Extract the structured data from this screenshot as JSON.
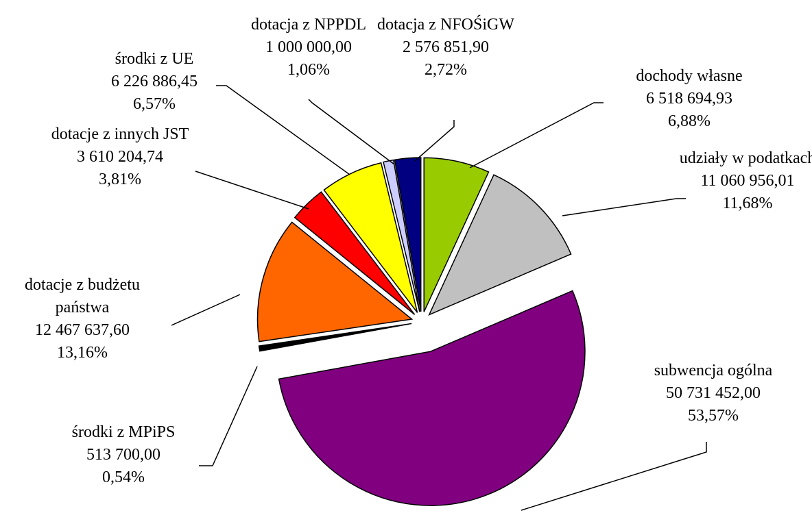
{
  "chart_data": {
    "type": "pie",
    "categories": [
      "dochody własne",
      "udziały w podatkach",
      "subwencja ogólna",
      "środki z MPiPS",
      "dotacje z budżetu państwa",
      "dotacje z innych JST",
      "środki z UE",
      "dotacja z NPPDL",
      "dotacja z NFOŚiGW"
    ],
    "amounts": [
      6518694.93,
      11060956.01,
      50731452.0,
      513700.0,
      12467637.6,
      3610204.74,
      6226886.45,
      1000000.0,
      2576851.9
    ],
    "amount_labels": [
      "6 518 694,93",
      "11 060 956,01",
      "50 731 452,00",
      "513 700,00",
      "12 467 637,60",
      "3 610 204,74",
      "6 226 886,45",
      "1 000 000,00",
      "2 576 851,90"
    ],
    "values": [
      6.88,
      11.68,
      53.57,
      0.54,
      13.16,
      3.81,
      6.57,
      1.06,
      2.72
    ],
    "value_labels": [
      "6,88%",
      "11,68%",
      "53,57%",
      "0,54%",
      "13,16%",
      "3,81%",
      "6,57%",
      "1,06%",
      "2,72%"
    ],
    "colors": [
      "#99cc00",
      "#c0c0c0",
      "#800080",
      "#000000",
      "#ff6600",
      "#ff0000",
      "#ffff00",
      "#ccccff",
      "#000080"
    ]
  }
}
